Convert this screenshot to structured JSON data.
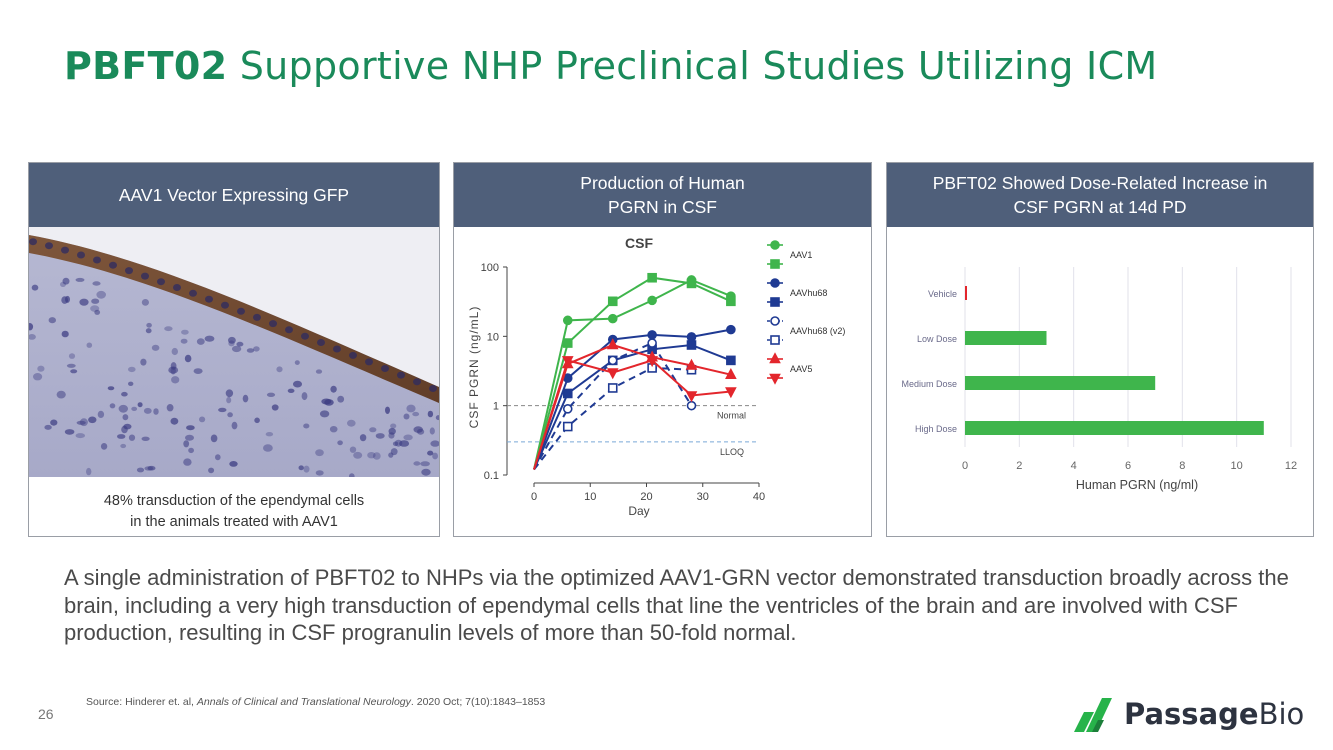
{
  "title": {
    "bold": "PBFT02",
    "rest": " Supportive NHP Preclinical Studies Utilizing ICM"
  },
  "panel1": {
    "header": "AAV1 Vector Expressing GFP",
    "caption": "48% transduction of the ependymal cells\nin the animals treated with AAV1",
    "image_icon": "histology-image"
  },
  "panel2": {
    "header": "Production of Human\nPGRN in CSF",
    "chart_title": "CSF",
    "xlabel": "Day",
    "ylabel": "CSF PGRN (ng/mL)",
    "normal_label": "Normal",
    "lloq_label": "LLOQ",
    "xticks": [
      "0",
      "10",
      "20",
      "30",
      "40"
    ],
    "yticks": [
      "100",
      "10",
      "1",
      "0.1"
    ]
  },
  "panel3": {
    "header": "PBFT02 Showed Dose-Related Increase in\nCSF PGRN at 14d PD",
    "xlabel": "Human PGRN (ng/ml)",
    "xticks": [
      "0",
      "2",
      "4",
      "6",
      "8",
      "10",
      "12"
    ]
  },
  "body_text": "A single administration of PBFT02 to NHPs via the optimized AAV1-GRN vector demonstrated transduction broadly across the brain, including a very high transduction of ependymal cells that line the ventricles of the brain and are involved with CSF production, resulting in CSF progranulin levels of more than 50-fold normal.",
  "source": {
    "prefix": "Source:  Hinderer et. al, ",
    "journal": "Annals of Clinical and Translational Neurology",
    "suffix": ". 2020 Oct; 7(10):1843–1853"
  },
  "page_number": "26",
  "logo": {
    "word1": "Passage",
    "word2": "Bio",
    "icon": "passage-bio-logo-icon",
    "color": "#27b34a"
  },
  "colors": {
    "green": "#3fb54c",
    "blue": "#1f3a93",
    "red": "#e3262c",
    "header": "#4f5f7a",
    "title": "#1a8a5a"
  },
  "chart_data": [
    {
      "type": "line",
      "title": "CSF",
      "xlabel": "Day",
      "ylabel": "CSF PGRN (ng/mL)",
      "yscale": "log",
      "xlim": [
        0,
        40
      ],
      "ylim": [
        0.1,
        100
      ],
      "reference_lines": [
        {
          "label": "Normal",
          "y": 1.0
        },
        {
          "label": "LLOQ",
          "y": 0.3
        }
      ],
      "legend_position": "right",
      "series": [
        {
          "name": "AAV1",
          "color": "#3fb54c",
          "marker": "circle",
          "filled": true,
          "dashed": false,
          "x": [
            0,
            6,
            14,
            21,
            28,
            35
          ],
          "y": [
            0.12,
            17,
            18,
            33,
            65,
            38
          ]
        },
        {
          "name": "",
          "color": "#3fb54c",
          "marker": "square",
          "filled": true,
          "dashed": false,
          "x": [
            0,
            6,
            14,
            21,
            28,
            35
          ],
          "y": [
            0.12,
            8,
            32,
            70,
            58,
            32
          ]
        },
        {
          "name": "AAVhu68",
          "color": "#1f3a93",
          "marker": "circle",
          "filled": true,
          "dashed": false,
          "x": [
            0,
            6,
            14,
            21,
            28,
            35
          ],
          "y": [
            0.12,
            2.5,
            9,
            10.5,
            9.8,
            12.5
          ]
        },
        {
          "name": "",
          "color": "#1f3a93",
          "marker": "square",
          "filled": true,
          "dashed": false,
          "x": [
            0,
            6,
            14,
            21,
            28,
            35
          ],
          "y": [
            0.12,
            1.5,
            4.5,
            6.5,
            7.5,
            4.5
          ]
        },
        {
          "name": "AAVhu68 (v2)",
          "color": "#1f3a93",
          "marker": "circle",
          "filled": false,
          "dashed": true,
          "x": [
            0,
            6,
            14,
            21,
            28
          ],
          "y": [
            0.12,
            0.9,
            4.5,
            8,
            1.0
          ]
        },
        {
          "name": "",
          "color": "#1f3a93",
          "marker": "square",
          "filled": false,
          "dashed": true,
          "x": [
            0,
            6,
            14,
            21,
            28
          ],
          "y": [
            0.12,
            0.5,
            1.8,
            3.5,
            3.3
          ]
        },
        {
          "name": "AAV5",
          "color": "#e3262c",
          "marker": "triangle-up",
          "filled": true,
          "dashed": false,
          "x": [
            0,
            6,
            14,
            21,
            28,
            35
          ],
          "y": [
            0.12,
            4,
            7.5,
            5,
            3.8,
            2.8
          ]
        },
        {
          "name": "",
          "color": "#e3262c",
          "marker": "triangle-down",
          "filled": true,
          "dashed": false,
          "x": [
            0,
            6,
            14,
            21,
            28,
            35
          ],
          "y": [
            0.12,
            4.5,
            3,
            4.5,
            1.4,
            1.6
          ]
        }
      ]
    },
    {
      "type": "bar",
      "orientation": "horizontal",
      "xlabel": "Human PGRN (ng/ml)",
      "xlim": [
        0,
        12
      ],
      "categories": [
        "Vehicle",
        "Low Dose",
        "Medium Dose",
        "High Dose"
      ],
      "values": [
        0.05,
        3,
        7,
        11
      ],
      "colors": [
        "#e3262c",
        "#3fb54c",
        "#3fb54c",
        "#3fb54c"
      ]
    }
  ]
}
